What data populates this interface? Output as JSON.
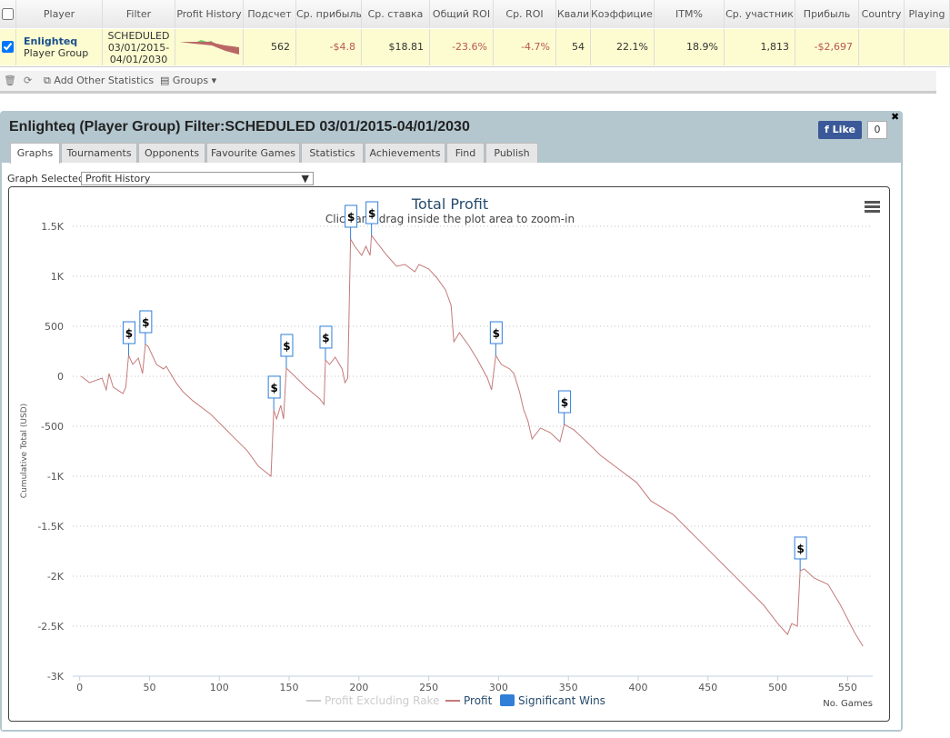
{
  "table": {
    "columns": [
      "Player",
      "Filter",
      "Profit History",
      "Подсчет",
      "Ср. прибыль",
      "Ср. ставка",
      "Общий ROI",
      "Ср. ROI",
      "Квали",
      "Коэффициен",
      "ITM%",
      "Ср. участник",
      "Прибыль",
      "Country",
      "Playing"
    ],
    "row": {
      "player": "Enlighteq",
      "player_type": "Player Group",
      "filter": "SCHEDULED 03/01/2015-04/01/2030",
      "cells": [
        "562",
        "-$4.8",
        "$18.81",
        "-23.6%",
        "-4.7%",
        "54",
        "22.1%",
        "18.9%",
        "1,813",
        "-$2,697"
      ]
    }
  },
  "toolbar": {
    "add_stats": "Add Other Statistics",
    "groups": "Groups"
  },
  "panel": {
    "title": "Enlighteq (Player Group) Filter:SCHEDULED 03/01/2015-04/01/2030",
    "like": "Like",
    "like_count": "0",
    "tabs": [
      "Graphs",
      "Tournaments",
      "Opponents",
      "Favourite Games",
      "Statistics",
      "Achievements",
      "Find",
      "Publish"
    ],
    "graph_selected_label": "Graph Selected:",
    "graph_selected": "Profit History"
  },
  "chart_data": {
    "type": "line",
    "title": "Total Profit",
    "subtitle": "Click and drag inside the plot area to zoom-in",
    "x_label": "No. Games",
    "y_label": "Cumulative Total (USD)",
    "xlim": [
      -5,
      568
    ],
    "xticks": [
      0,
      50,
      100,
      150,
      200,
      250,
      300,
      350,
      400,
      450,
      500,
      550
    ],
    "ylim": [
      -3000,
      1500
    ],
    "yticks": [
      {
        "value": -3000,
        "label": "-3K"
      },
      {
        "value": -2500,
        "label": "-2.5K"
      },
      {
        "value": -2000,
        "label": "-2K"
      },
      {
        "value": -1500,
        "label": "-1.5K"
      },
      {
        "value": -1000,
        "label": "-1K"
      },
      -500,
      0,
      500,
      {
        "value": 1000,
        "label": "1K"
      },
      {
        "value": 1500,
        "label": "1.5K"
      }
    ],
    "grid": true,
    "hidden_series": [
      "Profit Excluding Rake"
    ],
    "flag_text": "$",
    "series": [
      {
        "name": "Profit",
        "color": "#c47a7a",
        "x": [
          1,
          7,
          16,
          19,
          21,
          24,
          31,
          33,
          35,
          38,
          42,
          45,
          47,
          49,
          55,
          60,
          62,
          69,
          74,
          81,
          94,
          107,
          120,
          128,
          137,
          139,
          141,
          144,
          146,
          148,
          152,
          162,
          172,
          175,
          176,
          179,
          183,
          188,
          190,
          192,
          194,
          197,
          202,
          205,
          208,
          209,
          214,
          220,
          227,
          233,
          240,
          243,
          250,
          256,
          262,
          266,
          268,
          272,
          279,
          285,
          292,
          295,
          298,
          302,
          308,
          311,
          315,
          318,
          321,
          324,
          330,
          337,
          344,
          347,
          354,
          363,
          373,
          386,
          399,
          409,
          425,
          438,
          451,
          464,
          477,
          490,
          500,
          507,
          510,
          514,
          516,
          519,
          526,
          536,
          545,
          555,
          561
        ],
        "values": [
          0,
          -64,
          -18,
          -136,
          27,
          -109,
          -173,
          -109,
          209,
          118,
          182,
          27,
          318,
          300,
          118,
          73,
          100,
          -64,
          -155,
          -245,
          -382,
          -564,
          -745,
          -900,
          -1000,
          -336,
          -427,
          -291,
          -427,
          82,
          27,
          -109,
          -227,
          -282,
          164,
          118,
          191,
          73,
          -64,
          -18,
          1373,
          1300,
          1209,
          1300,
          1209,
          1409,
          1318,
          1209,
          1100,
          1118,
          1045,
          1118,
          1073,
          982,
          864,
          709,
          345,
          436,
          300,
          164,
          -18,
          -136,
          209,
          118,
          73,
          27,
          -155,
          -336,
          -445,
          -627,
          -518,
          -564,
          -655,
          -482,
          -536,
          -655,
          -791,
          -927,
          -1064,
          -1245,
          -1382,
          -1564,
          -1745,
          -1927,
          -2109,
          -2291,
          -2473,
          -2582,
          -2473,
          -2500,
          -1945,
          -1927,
          -2018,
          -2082,
          -2291,
          -2564,
          -2700
        ]
      },
      {
        "name": "Significant Wins",
        "color": "#2f7ed8",
        "x": [
          35,
          47,
          139,
          148,
          176,
          194,
          209,
          298,
          347,
          516
        ],
        "values": [
          209,
          318,
          -336,
          82,
          164,
          1373,
          1409,
          209,
          -482,
          -1945
        ]
      }
    ]
  }
}
